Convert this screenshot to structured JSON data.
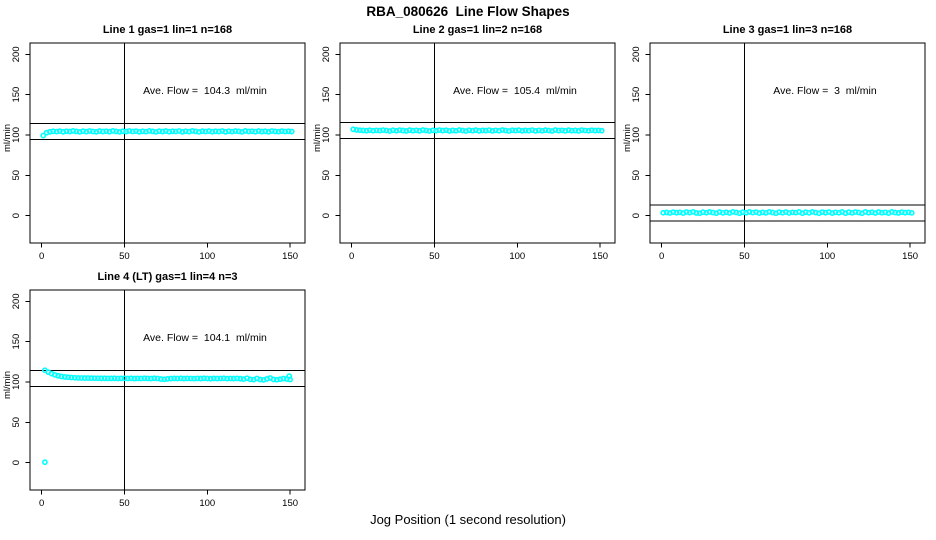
{
  "page": {
    "main_title": "RBA_080626  Line Flow Shapes",
    "x_axis_label": "Jog Position (1 second resolution)",
    "background_color": "#ffffff",
    "point_color": "#00ffff",
    "line_color": "#000000"
  },
  "chart_data": [
    {
      "type": "scatter",
      "title": "Line 1 gas=1 lin=1 n=168",
      "annotation": "Ave. Flow =  104.3  ml/min",
      "ave_flow": 104.3,
      "n": 168,
      "ylabel": "ml/min",
      "x_ticks": [
        0,
        50,
        100,
        150
      ],
      "y_ticks": [
        0,
        50,
        100,
        150,
        200
      ],
      "xlim": [
        -7,
        159
      ],
      "ylim": [
        -34,
        214
      ],
      "vline_x": 50,
      "hlines": [
        114.3,
        94.3
      ],
      "x_start": 1,
      "x_step": 2,
      "y": [
        99.2,
        102.8,
        103.9,
        104.5,
        104.1,
        104.7,
        103.9,
        104.6,
        104.2,
        105.0,
        104.4,
        103.8,
        104.7,
        104.1,
        104.9,
        104.3,
        103.9,
        104.8,
        104.2,
        104.6,
        104.0,
        105.0,
        104.4,
        103.8,
        104.6,
        104.2,
        104.9,
        104.3,
        104.7,
        103.9,
        104.5,
        104.1,
        105.0,
        104.4,
        103.8,
        104.7,
        104.2,
        104.8,
        104.0,
        104.5,
        104.3,
        104.9,
        103.9,
        104.6,
        104.1,
        105.0,
        104.4,
        103.8,
        104.7,
        104.3,
        104.8,
        104.0,
        104.5,
        104.2,
        104.9,
        103.9,
        104.6,
        104.1,
        104.8,
        104.4,
        103.8,
        105.0,
        104.3,
        104.6,
        104.0,
        104.8,
        104.2,
        104.5,
        103.9,
        104.9,
        104.4,
        104.1,
        104.7,
        104.3,
        104.5,
        104.2
      ]
    },
    {
      "type": "scatter",
      "title": "Line 2 gas=1 lin=2 n=168",
      "annotation": "Ave. Flow =  105.4  ml/min",
      "ave_flow": 105.4,
      "n": 168,
      "ylabel": "ml/min",
      "x_ticks": [
        0,
        50,
        100,
        150
      ],
      "y_ticks": [
        0,
        50,
        100,
        150,
        200
      ],
      "xlim": [
        -7,
        159
      ],
      "ylim": [
        -34,
        214
      ],
      "vline_x": 50,
      "hlines": [
        115.4,
        95.4
      ],
      "x_start": 1,
      "x_step": 2,
      "y": [
        107.0,
        106.2,
        105.8,
        105.6,
        105.3,
        105.8,
        105.2,
        105.7,
        105.4,
        106.0,
        105.5,
        104.9,
        105.8,
        105.2,
        106.0,
        105.4,
        105.0,
        105.9,
        105.3,
        105.7,
        105.1,
        106.1,
        105.5,
        104.9,
        105.7,
        105.3,
        106.0,
        105.4,
        105.8,
        105.0,
        105.6,
        105.2,
        106.1,
        105.5,
        104.9,
        105.8,
        105.3,
        105.9,
        105.1,
        105.6,
        105.4,
        106.0,
        105.0,
        105.7,
        105.2,
        106.1,
        105.5,
        104.9,
        105.8,
        105.4,
        105.9,
        105.1,
        105.6,
        105.3,
        106.0,
        105.0,
        105.7,
        105.2,
        105.9,
        105.5,
        104.9,
        106.1,
        105.4,
        105.7,
        105.1,
        105.9,
        105.3,
        105.6,
        105.0,
        106.0,
        105.5,
        105.2,
        105.8,
        105.4,
        105.6,
        105.3
      ]
    },
    {
      "type": "scatter",
      "title": "Line 3 gas=1 lin=3 n=168",
      "annotation": "Ave. Flow =  3  ml/min",
      "ave_flow": 3,
      "n": 168,
      "ylabel": "ml/min",
      "x_ticks": [
        0,
        50,
        100,
        150
      ],
      "y_ticks": [
        0,
        50,
        100,
        150,
        200
      ],
      "xlim": [
        -7,
        159
      ],
      "ylim": [
        -34,
        214
      ],
      "vline_x": 50,
      "hlines": [
        13,
        -7
      ],
      "x_start": 1,
      "x_step": 2,
      "y": [
        3.5,
        3.9,
        3.2,
        4.3,
        3.6,
        4.0,
        3.1,
        4.4,
        3.7,
        4.6,
        3.3,
        2.9,
        4.2,
        3.5,
        4.5,
        3.8,
        3.0,
        4.4,
        3.4,
        4.1,
        3.2,
        4.6,
        3.9,
        2.9,
        4.2,
        3.5,
        4.5,
        3.7,
        4.3,
        3.1,
        4.0,
        3.4,
        4.6,
        3.8,
        2.9,
        4.3,
        3.5,
        4.4,
        3.2,
        4.0,
        3.7,
        4.5,
        3.0,
        4.2,
        3.4,
        4.6,
        3.8,
        2.9,
        4.3,
        3.6,
        4.4,
        3.1,
        4.0,
        3.5,
        4.5,
        3.0,
        4.2,
        3.4,
        4.4,
        3.8,
        2.9,
        4.6,
        3.5,
        4.1,
        3.2,
        4.4,
        3.6,
        4.0,
        3.1,
        4.5,
        3.8,
        3.3,
        4.2,
        3.6,
        4.0,
        3.4
      ]
    },
    {
      "type": "scatter",
      "title": "Line 4 (LT) gas=1 lin=4 n=3",
      "annotation": "Ave. Flow =  104.1  ml/min",
      "ave_flow": 104.1,
      "n": 3,
      "ylabel": "ml/min",
      "x_ticks": [
        0,
        50,
        100,
        150
      ],
      "y_ticks": [
        0,
        50,
        100,
        150,
        200
      ],
      "xlim": [
        -7,
        159
      ],
      "ylim": [
        -34,
        214
      ],
      "vline_x": 50,
      "hlines": [
        114.1,
        94.1
      ],
      "x_start": 2,
      "x_step": 2,
      "y": [
        114.5,
        112.2,
        110.3,
        108.8,
        107.6,
        106.8,
        106.2,
        105.8,
        105.5,
        105.2,
        105.0,
        104.9,
        104.8,
        104.8,
        104.7,
        104.6,
        104.6,
        104.5,
        104.5,
        104.4,
        104.4,
        104.5,
        104.3,
        104.4,
        104.6,
        104.3,
        104.5,
        104.2,
        104.4,
        104.3,
        104.5,
        104.4,
        104.2,
        104.5,
        104.3,
        103.6,
        103.3,
        103.8,
        104.2,
        104.4,
        104.3,
        104.5,
        104.2,
        104.4,
        104.3,
        104.1,
        104.4,
        104.2,
        104.5,
        104.3,
        104.0,
        104.4,
        104.2,
        104.3,
        104.5,
        104.1,
        104.3,
        104.2,
        104.4,
        104.0,
        103.5,
        104.6,
        103.2,
        102.9,
        104.3,
        103.0,
        102.6,
        103.8,
        104.9,
        103.1,
        102.7,
        103.4,
        104.2,
        103.6,
        103.0
      ],
      "extra_points": [
        [
          2,
          0.5
        ],
        [
          149.5,
          107.2
        ]
      ]
    }
  ]
}
